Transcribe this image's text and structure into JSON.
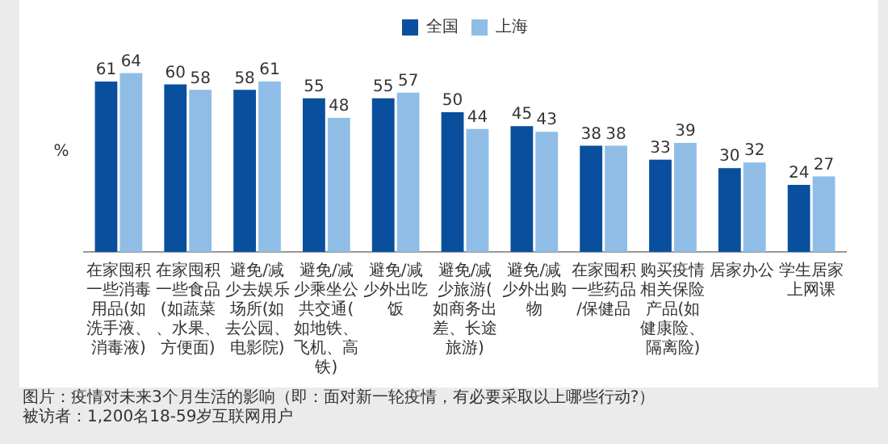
{
  "chart_data": {
    "type": "bar",
    "categories": [
      "在家囤积一些消毒用品(如洗手液、消毒液)",
      "在家囤积一些食品(如蔬菜、水果、方便面)",
      "避免/减少去娱乐场所(如去公园、电影院)",
      "避免/减少乘坐公共交通(如地铁、飞机、高铁)",
      "避免/减少外出吃饭",
      "避免/减少旅游(如商务出差、长途旅游)",
      "避免/减少外出购物",
      "在家囤积一些药品/保健品",
      "购买疫情相关保险产品(如健康险、隔离险)",
      "居家办公",
      "学生居家上网课"
    ],
    "series": [
      {
        "name": "全国",
        "color": "#0a4f9e",
        "values": [
          61,
          60,
          58,
          55,
          55,
          50,
          45,
          38,
          33,
          30,
          24
        ]
      },
      {
        "name": "上海",
        "color": "#8fbde6",
        "values": [
          64,
          58,
          61,
          48,
          57,
          44,
          43,
          38,
          39,
          32,
          27
        ]
      }
    ],
    "ylabel": "%",
    "legend": "top",
    "data_labels": true,
    "annotations": [
      "图片：疫情对未来3个月生活的影响（即：面对新一轮疫情，有必要采取以上哪些行动?）",
      "被访者：1,200名18-59岁互联网用户"
    ]
  }
}
